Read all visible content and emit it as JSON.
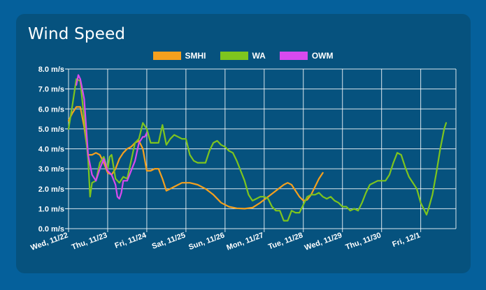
{
  "title": "Wind Speed",
  "chart_data": {
    "type": "line",
    "title": "Wind Speed",
    "xlabel": "",
    "ylabel": "",
    "ylim": [
      0,
      8
    ],
    "y_ticks": [
      "0.0 m/s",
      "1.0 m/s",
      "2.0 m/s",
      "3.0 m/s",
      "4.0 m/s",
      "5.0 m/s",
      "6.0 m/s",
      "7.0 m/s",
      "8.0 m/s"
    ],
    "x_unit": "days from Wed 11/22 00:00",
    "xlim": [
      0,
      9.9
    ],
    "x_ticks": [
      "Wed, 11/22",
      "Thu, 11/23",
      "Fri, 11/24",
      "Sat, 11/25",
      "Sun, 11/26",
      "Mon, 11/27",
      "Tue, 11/28",
      "Wed, 11/29",
      "Thu, 11/30",
      "Fri, 12/1"
    ],
    "grid": true,
    "legend": "top-center",
    "series": [
      {
        "name": "SMHI",
        "color": "#f5a01e",
        "points": [
          [
            0,
            5.4
          ],
          [
            0.1,
            5.8
          ],
          [
            0.2,
            6.1
          ],
          [
            0.3,
            6.1
          ],
          [
            0.4,
            5.1
          ],
          [
            0.5,
            3.7
          ],
          [
            0.6,
            3.7
          ],
          [
            0.7,
            3.8
          ],
          [
            0.8,
            3.7
          ],
          [
            0.9,
            3.3
          ],
          [
            1.0,
            2.8
          ],
          [
            1.1,
            2.7
          ],
          [
            1.2,
            3.0
          ],
          [
            1.3,
            3.5
          ],
          [
            1.4,
            3.8
          ],
          [
            1.5,
            4.0
          ],
          [
            1.6,
            4.1
          ],
          [
            1.7,
            4.3
          ],
          [
            1.8,
            4.4
          ],
          [
            1.9,
            4.0
          ],
          [
            2.0,
            2.9
          ],
          [
            2.1,
            2.9
          ],
          [
            2.2,
            3.0
          ],
          [
            2.3,
            3.0
          ],
          [
            2.4,
            2.5
          ],
          [
            2.5,
            1.9
          ],
          [
            2.6,
            2.0
          ],
          [
            2.7,
            2.1
          ],
          [
            2.8,
            2.2
          ],
          [
            2.9,
            2.3
          ],
          [
            3.1,
            2.3
          ],
          [
            3.3,
            2.2
          ],
          [
            3.5,
            2.0
          ],
          [
            3.7,
            1.7
          ],
          [
            3.9,
            1.3
          ],
          [
            4.1,
            1.1
          ],
          [
            4.3,
            1.02
          ],
          [
            4.5,
            1.0
          ],
          [
            4.7,
            1.05
          ],
          [
            4.9,
            1.3
          ],
          [
            5.1,
            1.6
          ],
          [
            5.3,
            1.9
          ],
          [
            5.5,
            2.2
          ],
          [
            5.6,
            2.3
          ],
          [
            5.7,
            2.2
          ],
          [
            5.8,
            1.9
          ],
          [
            5.9,
            1.6
          ],
          [
            6.0,
            1.4
          ],
          [
            6.1,
            1.45
          ],
          [
            6.2,
            1.7
          ],
          [
            6.3,
            2.1
          ],
          [
            6.4,
            2.5
          ],
          [
            6.5,
            2.8
          ]
        ]
      },
      {
        "name": "WA",
        "color": "#7ec51e",
        "points": [
          [
            0,
            5.0
          ],
          [
            0.1,
            6.2
          ],
          [
            0.2,
            7.5
          ],
          [
            0.3,
            7.4
          ],
          [
            0.4,
            5.5
          ],
          [
            0.5,
            3.5
          ],
          [
            0.55,
            1.6
          ],
          [
            0.6,
            2.3
          ],
          [
            0.7,
            2.4
          ],
          [
            0.8,
            3.3
          ],
          [
            0.9,
            3.6
          ],
          [
            1.0,
            3.0
          ],
          [
            1.05,
            3.6
          ],
          [
            1.1,
            3.7
          ],
          [
            1.2,
            2.5
          ],
          [
            1.3,
            2.3
          ],
          [
            1.4,
            2.6
          ],
          [
            1.5,
            2.5
          ],
          [
            1.6,
            3.4
          ],
          [
            1.7,
            4.3
          ],
          [
            1.8,
            4.5
          ],
          [
            1.9,
            5.3
          ],
          [
            2.0,
            5.0
          ],
          [
            2.1,
            4.3
          ],
          [
            2.2,
            4.3
          ],
          [
            2.3,
            4.3
          ],
          [
            2.4,
            5.2
          ],
          [
            2.5,
            4.2
          ],
          [
            2.6,
            4.5
          ],
          [
            2.7,
            4.7
          ],
          [
            2.8,
            4.6
          ],
          [
            2.9,
            4.5
          ],
          [
            3.0,
            4.5
          ],
          [
            3.1,
            3.7
          ],
          [
            3.2,
            3.4
          ],
          [
            3.3,
            3.3
          ],
          [
            3.5,
            3.3
          ],
          [
            3.6,
            3.9
          ],
          [
            3.7,
            4.3
          ],
          [
            3.8,
            4.4
          ],
          [
            3.9,
            4.2
          ],
          [
            4.0,
            4.1
          ],
          [
            4.1,
            3.9
          ],
          [
            4.2,
            3.8
          ],
          [
            4.3,
            3.4
          ],
          [
            4.4,
            2.9
          ],
          [
            4.5,
            2.4
          ],
          [
            4.6,
            1.7
          ],
          [
            4.7,
            1.4
          ],
          [
            4.8,
            1.5
          ],
          [
            4.9,
            1.6
          ],
          [
            5.0,
            1.6
          ],
          [
            5.1,
            1.5
          ],
          [
            5.2,
            1.1
          ],
          [
            5.3,
            0.9
          ],
          [
            5.4,
            0.9
          ],
          [
            5.5,
            0.4
          ],
          [
            5.6,
            0.4
          ],
          [
            5.7,
            0.9
          ],
          [
            5.8,
            0.8
          ],
          [
            5.9,
            0.8
          ],
          [
            6.0,
            1.2
          ],
          [
            6.1,
            1.6
          ],
          [
            6.2,
            1.7
          ],
          [
            6.3,
            1.7
          ],
          [
            6.4,
            1.8
          ],
          [
            6.5,
            1.6
          ],
          [
            6.6,
            1.5
          ],
          [
            6.7,
            1.6
          ],
          [
            6.8,
            1.4
          ],
          [
            6.9,
            1.3
          ],
          [
            7.0,
            1.1
          ],
          [
            7.1,
            1.1
          ],
          [
            7.2,
            0.9
          ],
          [
            7.3,
            1.0
          ],
          [
            7.4,
            0.9
          ],
          [
            7.5,
            1.3
          ],
          [
            7.6,
            1.8
          ],
          [
            7.7,
            2.2
          ],
          [
            7.8,
            2.3
          ],
          [
            7.9,
            2.4
          ],
          [
            8.1,
            2.4
          ],
          [
            8.2,
            2.7
          ],
          [
            8.3,
            3.3
          ],
          [
            8.4,
            3.8
          ],
          [
            8.5,
            3.7
          ],
          [
            8.6,
            3.1
          ],
          [
            8.7,
            2.6
          ],
          [
            8.8,
            2.3
          ],
          [
            8.9,
            2.0
          ],
          [
            9.0,
            1.3
          ],
          [
            9.1,
            0.9
          ],
          [
            9.15,
            0.7
          ],
          [
            9.2,
            1.0
          ],
          [
            9.3,
            1.7
          ],
          [
            9.4,
            2.8
          ],
          [
            9.5,
            4.0
          ],
          [
            9.6,
            5.0
          ],
          [
            9.65,
            5.3
          ]
        ]
      },
      {
        "name": "OWM",
        "color": "#d84aef",
        "points": [
          [
            0.2,
            7.2
          ],
          [
            0.25,
            7.7
          ],
          [
            0.3,
            7.5
          ],
          [
            0.4,
            6.5
          ],
          [
            0.5,
            3.7
          ],
          [
            0.6,
            2.7
          ],
          [
            0.7,
            2.4
          ],
          [
            0.8,
            3.0
          ],
          [
            0.9,
            3.5
          ],
          [
            1.0,
            2.9
          ],
          [
            1.1,
            2.7
          ],
          [
            1.2,
            2.2
          ],
          [
            1.25,
            1.6
          ],
          [
            1.3,
            1.5
          ],
          [
            1.35,
            1.8
          ],
          [
            1.4,
            2.4
          ],
          [
            1.5,
            2.4
          ],
          [
            1.6,
            2.9
          ],
          [
            1.7,
            3.4
          ],
          [
            1.8,
            4.3
          ],
          [
            1.9,
            4.6
          ],
          [
            1.95,
            4.6
          ],
          [
            2.0,
            4.8
          ]
        ]
      }
    ]
  }
}
